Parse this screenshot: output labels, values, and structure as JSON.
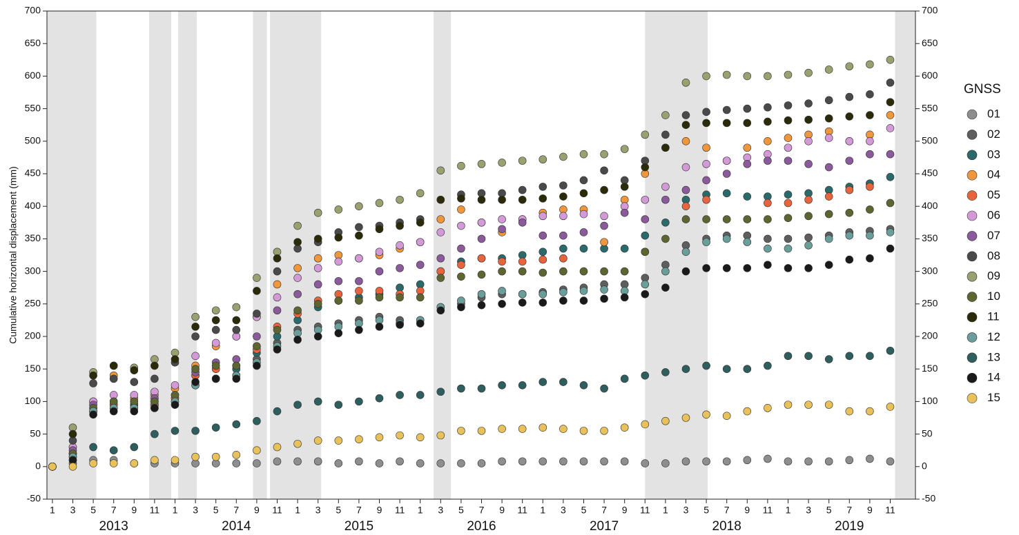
{
  "chart_data": {
    "type": "scatter",
    "y_label": "Cumulative horizontal displacement (mm)",
    "legend_title": "GNSS",
    "legend": "right",
    "ylim": [
      -50,
      700
    ],
    "yticks": [
      -50,
      0,
      50,
      100,
      150,
      200,
      250,
      300,
      350,
      400,
      450,
      500,
      550,
      600,
      650,
      700
    ],
    "xlim": [
      "2012-12-15",
      "2020-01-15"
    ],
    "shaded_periods": [
      [
        "2012-12-15",
        "2013-05-10"
      ],
      [
        "2013-10-15",
        "2013-12-20"
      ],
      [
        "2014-01-10",
        "2014-03-05"
      ],
      [
        "2014-08-20",
        "2014-10-01"
      ],
      [
        "2014-10-10",
        "2015-03-10"
      ],
      [
        "2016-02-10",
        "2016-04-01"
      ],
      [
        "2017-11-01",
        "2018-05-05"
      ],
      [
        "2019-11-15",
        "2020-01-15"
      ]
    ],
    "shade_color": "#e3e3e3",
    "x": [
      "2013-01",
      "2013-03",
      "2013-05",
      "2013-07",
      "2013-09",
      "2013-11",
      "2014-01",
      "2014-03",
      "2014-05",
      "2014-07",
      "2014-09",
      "2014-11",
      "2015-01",
      "2015-03",
      "2015-05",
      "2015-07",
      "2015-09",
      "2015-11",
      "2016-01",
      "2016-03",
      "2016-05",
      "2016-07",
      "2016-09",
      "2016-11",
      "2017-01",
      "2017-03",
      "2017-05",
      "2017-07",
      "2017-09",
      "2017-11",
      "2018-01",
      "2018-03",
      "2018-05",
      "2018-07",
      "2018-09",
      "2018-11",
      "2019-01",
      "2019-03",
      "2019-05",
      "2019-07",
      "2019-09",
      "2019-11"
    ],
    "xticks": [
      {
        "value": "2013-01",
        "label": "1"
      },
      {
        "value": "2013-03",
        "label": "3"
      },
      {
        "value": "2013-05",
        "label": "5"
      },
      {
        "value": "2013-07",
        "label": "7"
      },
      {
        "value": "2013-09",
        "label": "9"
      },
      {
        "value": "2013-11",
        "label": "11"
      },
      {
        "value": "2014-01",
        "label": "1"
      },
      {
        "value": "2014-03",
        "label": "3"
      },
      {
        "value": "2014-05",
        "label": "5"
      },
      {
        "value": "2014-07",
        "label": "7"
      },
      {
        "value": "2014-09",
        "label": "9"
      },
      {
        "value": "2014-11",
        "label": "11"
      },
      {
        "value": "2015-01",
        "label": "1"
      },
      {
        "value": "2015-03",
        "label": "3"
      },
      {
        "value": "2015-05",
        "label": "5"
      },
      {
        "value": "2015-07",
        "label": "7"
      },
      {
        "value": "2015-09",
        "label": "9"
      },
      {
        "value": "2015-11",
        "label": "11"
      },
      {
        "value": "2016-01",
        "label": "1"
      },
      {
        "value": "2016-03",
        "label": "3"
      },
      {
        "value": "2016-05",
        "label": "5"
      },
      {
        "value": "2016-07",
        "label": "7"
      },
      {
        "value": "2016-09",
        "label": "9"
      },
      {
        "value": "2016-11",
        "label": "11"
      },
      {
        "value": "2017-01",
        "label": "1"
      },
      {
        "value": "2017-03",
        "label": "3"
      },
      {
        "value": "2017-05",
        "label": "5"
      },
      {
        "value": "2017-07",
        "label": "7"
      },
      {
        "value": "2017-09",
        "label": "9"
      },
      {
        "value": "2017-11",
        "label": "11"
      },
      {
        "value": "2018-01",
        "label": "1"
      },
      {
        "value": "2018-03",
        "label": "3"
      },
      {
        "value": "2018-05",
        "label": "5"
      },
      {
        "value": "2018-07",
        "label": "7"
      },
      {
        "value": "2018-09",
        "label": "9"
      },
      {
        "value": "2018-11",
        "label": "11"
      },
      {
        "value": "2019-01",
        "label": "1"
      },
      {
        "value": "2019-03",
        "label": "3"
      },
      {
        "value": "2019-05",
        "label": "5"
      },
      {
        "value": "2019-07",
        "label": "7"
      },
      {
        "value": "2019-09",
        "label": "9"
      },
      {
        "value": "2019-11",
        "label": "11"
      }
    ],
    "year_labels": [
      {
        "value": "2013-07",
        "label": "2013"
      },
      {
        "value": "2014-07",
        "label": "2014"
      },
      {
        "value": "2015-07",
        "label": "2015"
      },
      {
        "value": "2016-07",
        "label": "2016"
      },
      {
        "value": "2017-07",
        "label": "2017"
      },
      {
        "value": "2018-07",
        "label": "2018"
      },
      {
        "value": "2019-07",
        "label": "2019"
      }
    ],
    "series": [
      {
        "name": "01",
        "color": "#8e8e8e",
        "values": [
          0,
          5,
          10,
          10,
          5,
          5,
          5,
          5,
          5,
          5,
          5,
          8,
          8,
          8,
          5,
          8,
          5,
          8,
          5,
          5,
          5,
          5,
          8,
          8,
          8,
          8,
          8,
          8,
          8,
          5,
          5,
          8,
          8,
          8,
          10,
          12,
          8,
          8,
          8,
          10,
          12,
          8
        ]
      },
      {
        "name": "02",
        "color": "#5e5e5e",
        "values": [
          0,
          15,
          85,
          95,
          95,
          95,
          100,
          125,
          135,
          140,
          165,
          190,
          210,
          215,
          220,
          225,
          230,
          225,
          225,
          245,
          250,
          260,
          265,
          265,
          268,
          272,
          275,
          280,
          280,
          290,
          310,
          340,
          350,
          355,
          355,
          350,
          350,
          352,
          355,
          360,
          362,
          365
        ]
      },
      {
        "name": "03",
        "color": "#2a6a6a",
        "values": [
          0,
          20,
          85,
          90,
          95,
          100,
          105,
          140,
          150,
          150,
          175,
          200,
          225,
          245,
          255,
          260,
          265,
          275,
          280,
          300,
          315,
          320,
          320,
          325,
          330,
          335,
          335,
          335,
          335,
          355,
          375,
          410,
          418,
          420,
          415,
          415,
          418,
          420,
          425,
          430,
          435,
          445
        ]
      },
      {
        "name": "04",
        "color": "#f0963c",
        "values": [
          0,
          30,
          100,
          140,
          105,
          110,
          120,
          155,
          185,
          200,
          230,
          280,
          305,
          320,
          325,
          320,
          325,
          335,
          345,
          380,
          395,
          375,
          360,
          380,
          390,
          395,
          395,
          345,
          410,
          450,
          490,
          500,
          490,
          470,
          490,
          500,
          505,
          510,
          515,
          500,
          510,
          540
        ]
      },
      {
        "name": "05",
        "color": "#e8643c",
        "values": [
          0,
          20,
          90,
          95,
          90,
          95,
          105,
          140,
          150,
          155,
          180,
          215,
          235,
          255,
          265,
          270,
          270,
          265,
          270,
          300,
          310,
          320,
          315,
          315,
          318,
          320,
          null,
          null,
          null,
          330,
          null,
          400,
          410,
          null,
          null,
          405,
          405,
          410,
          415,
          425,
          430,
          null
        ]
      },
      {
        "name": "06",
        "color": "#d49ad8",
        "values": [
          0,
          30,
          100,
          110,
          110,
          115,
          125,
          170,
          190,
          200,
          230,
          260,
          290,
          305,
          315,
          320,
          330,
          340,
          345,
          360,
          370,
          375,
          380,
          380,
          385,
          385,
          388,
          385,
          400,
          410,
          430,
          460,
          465,
          470,
          475,
          480,
          490,
          500,
          505,
          500,
          500,
          520
        ]
      },
      {
        "name": "07",
        "color": "#8a5a9a",
        "values": [
          0,
          25,
          95,
          100,
          100,
          105,
          110,
          145,
          160,
          165,
          200,
          240,
          265,
          280,
          285,
          285,
          300,
          305,
          310,
          320,
          335,
          350,
          365,
          375,
          355,
          355,
          360,
          370,
          390,
          380,
          410,
          425,
          440,
          450,
          465,
          470,
          470,
          465,
          460,
          470,
          480,
          480
        ]
      },
      {
        "name": "08",
        "color": "#4a4a4a",
        "values": [
          0,
          40,
          128,
          135,
          130,
          135,
          160,
          200,
          210,
          210,
          235,
          300,
          335,
          345,
          360,
          368,
          370,
          375,
          380,
          410,
          418,
          420,
          420,
          425,
          430,
          432,
          440,
          455,
          440,
          470,
          510,
          540,
          545,
          548,
          550,
          552,
          555,
          558,
          563,
          568,
          572,
          590
        ]
      },
      {
        "name": "09",
        "color": "#9aa070",
        "values": [
          0,
          60,
          145,
          155,
          152,
          165,
          175,
          230,
          240,
          245,
          290,
          330,
          370,
          390,
          395,
          400,
          405,
          410,
          420,
          455,
          462,
          465,
          467,
          470,
          472,
          476,
          480,
          480,
          488,
          510,
          540,
          590,
          600,
          602,
          600,
          600,
          602,
          605,
          610,
          615,
          618,
          625
        ]
      },
      {
        "name": "10",
        "color": "#5f6530",
        "values": [
          0,
          20,
          90,
          100,
          100,
          100,
          110,
          150,
          155,
          155,
          185,
          210,
          240,
          250,
          255,
          255,
          260,
          260,
          260,
          290,
          292,
          295,
          300,
          300,
          298,
          300,
          300,
          300,
          300,
          330,
          350,
          380,
          380,
          380,
          380,
          380,
          382,
          385,
          388,
          390,
          395,
          405
        ]
      },
      {
        "name": "11",
        "color": "#2b2b0a",
        "values": [
          0,
          50,
          140,
          155,
          148,
          155,
          165,
          215,
          225,
          225,
          270,
          320,
          345,
          350,
          352,
          355,
          365,
          370,
          375,
          410,
          412,
          410,
          410,
          410,
          412,
          415,
          420,
          425,
          430,
          460,
          490,
          525,
          528,
          528,
          528,
          530,
          532,
          533,
          535,
          538,
          540,
          560
        ]
      },
      {
        "name": "12",
        "color": "#6a9e9a",
        "values": [
          0,
          15,
          85,
          90,
          90,
          90,
          100,
          125,
          135,
          140,
          160,
          185,
          205,
          210,
          215,
          220,
          225,
          220,
          225,
          245,
          255,
          265,
          270,
          265,
          265,
          268,
          270,
          272,
          270,
          280,
          300,
          330,
          345,
          350,
          345,
          335,
          335,
          340,
          350,
          355,
          355,
          360
        ]
      },
      {
        "name": "13",
        "color": "#2f5e5e",
        "values": [
          0,
          10,
          30,
          25,
          30,
          50,
          55,
          55,
          60,
          65,
          70,
          85,
          95,
          100,
          95,
          100,
          105,
          110,
          110,
          115,
          120,
          120,
          125,
          125,
          130,
          130,
          125,
          120,
          135,
          140,
          145,
          150,
          155,
          150,
          150,
          155,
          170,
          170,
          165,
          170,
          170,
          178
        ]
      },
      {
        "name": "14",
        "color": "#1a1a1a",
        "values": [
          0,
          10,
          80,
          85,
          85,
          90,
          95,
          130,
          135,
          135,
          155,
          180,
          195,
          200,
          205,
          210,
          215,
          218,
          220,
          240,
          245,
          248,
          250,
          252,
          252,
          255,
          255,
          258,
          260,
          265,
          275,
          300,
          305,
          305,
          305,
          310,
          305,
          305,
          310,
          318,
          320,
          335
        ]
      },
      {
        "name": "15",
        "color": "#e8c15a",
        "values": [
          0,
          0,
          5,
          5,
          5,
          10,
          10,
          15,
          15,
          18,
          25,
          30,
          35,
          40,
          40,
          42,
          45,
          48,
          45,
          48,
          55,
          55,
          58,
          58,
          60,
          58,
          55,
          55,
          60,
          65,
          70,
          75,
          80,
          78,
          85,
          90,
          95,
          95,
          95,
          85,
          85,
          92
        ]
      }
    ]
  }
}
